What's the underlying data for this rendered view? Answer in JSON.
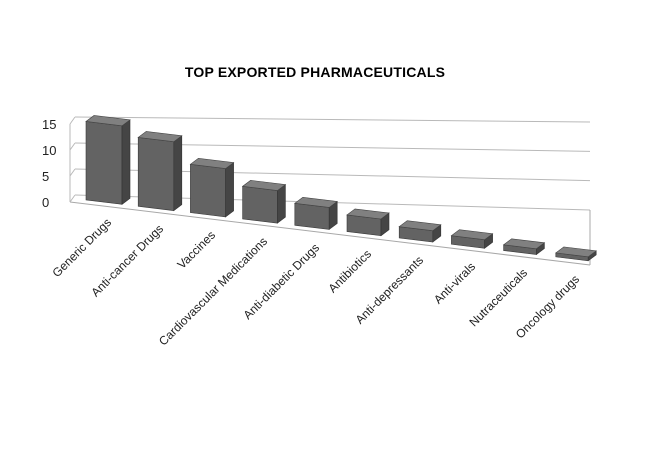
{
  "chart_data": {
    "type": "bar",
    "title": "TOP EXPORTED PHARMACEUTICALS",
    "xlabel": "",
    "ylabel": "",
    "categories": [
      "Generic Drugs",
      "Anti-cancer Drugs",
      "Vaccines",
      "Cardiovascular Medications",
      "Anti-diabetic Drugs",
      "Antibiotics",
      "Anti-depressants",
      "Anti-virals",
      "Nutraceuticals",
      "Oncology drugs"
    ],
    "values": [
      15,
      13,
      9,
      6,
      4,
      3,
      2,
      1.5,
      1,
      0.5
    ],
    "ylim": [
      0,
      15
    ],
    "yticks": [
      "15",
      "10",
      "5",
      "0"
    ],
    "grid": true,
    "legend": "none",
    "bar_color": "#636363"
  }
}
